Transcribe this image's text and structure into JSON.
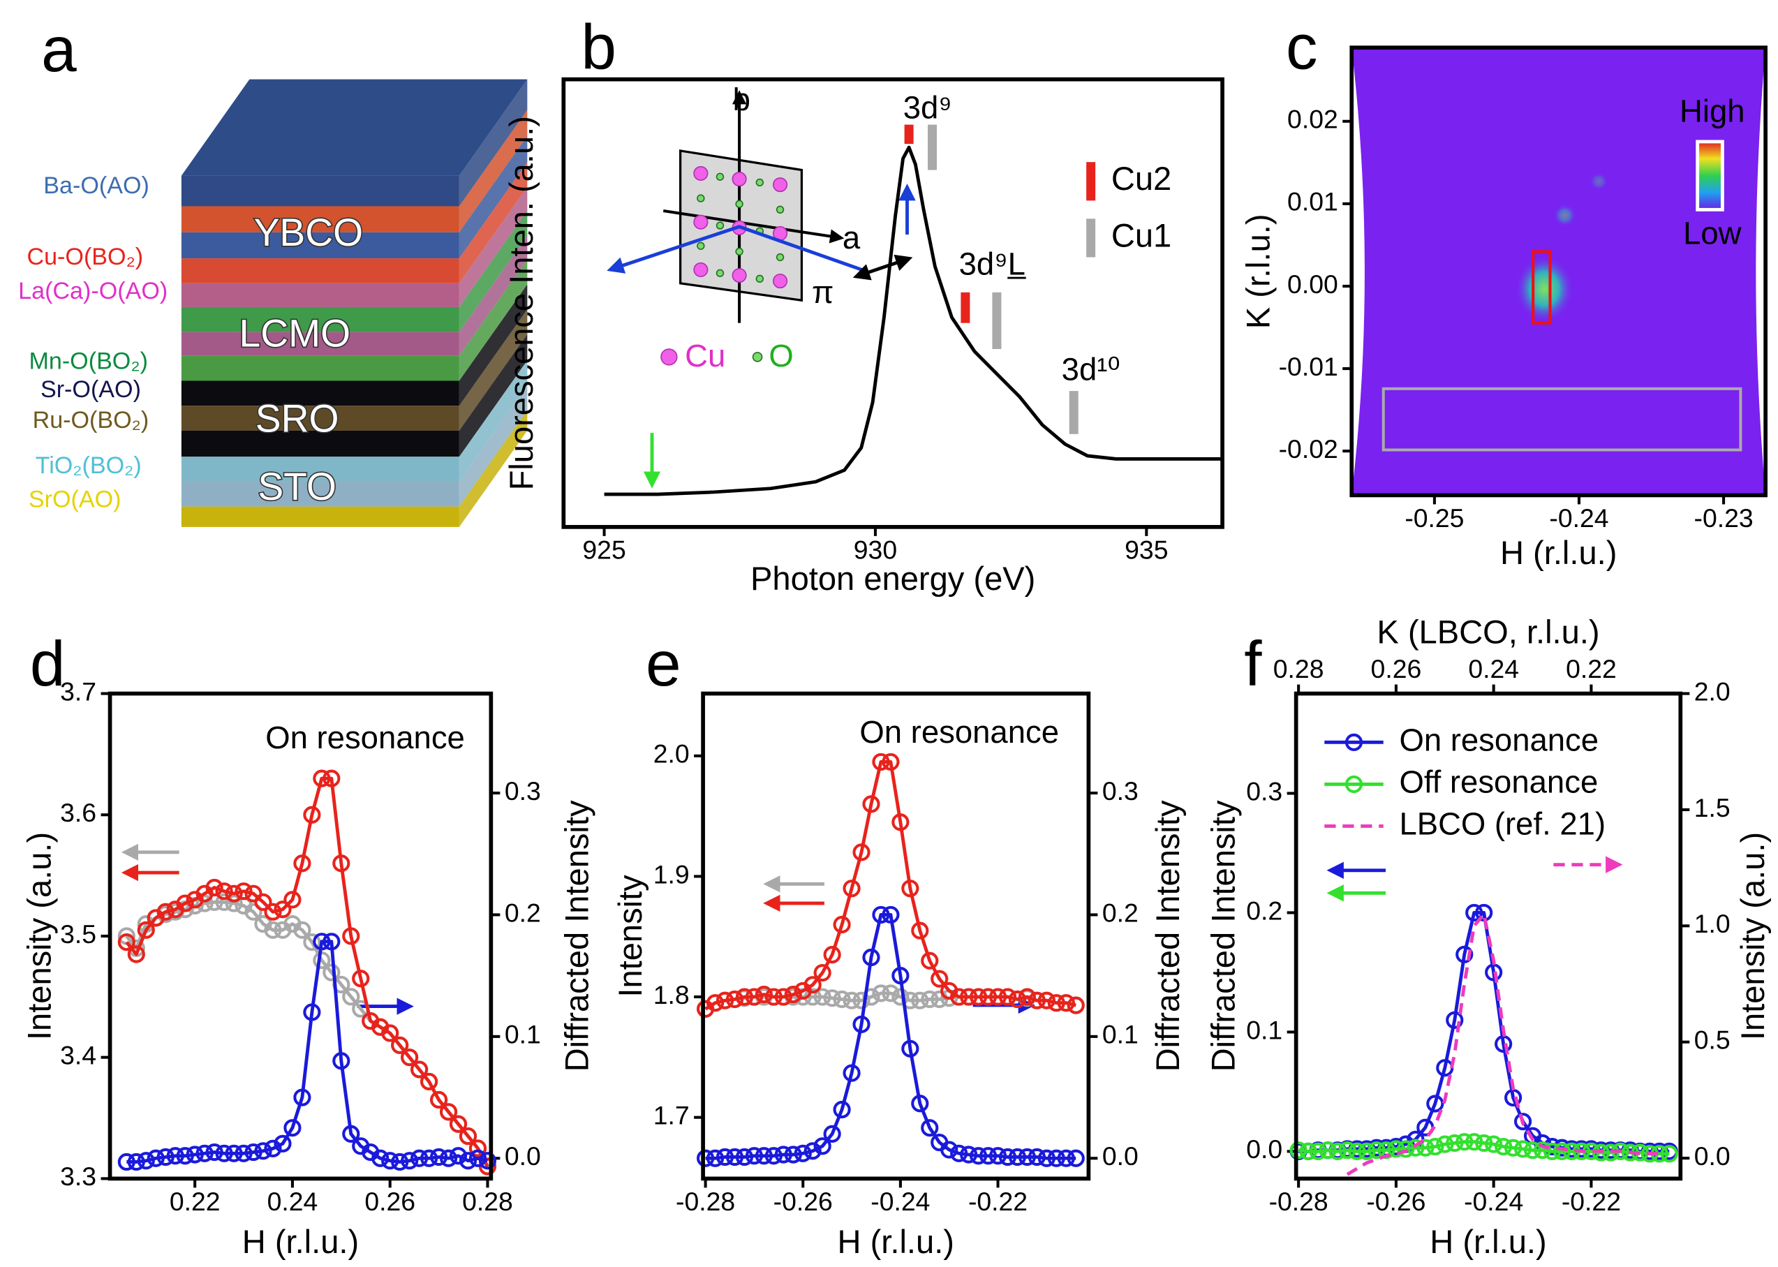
{
  "diagram": {
    "label": "a",
    "layer_labels": [
      {
        "text": "Ba-O(AO)",
        "color": "#3d6db0"
      },
      {
        "text": "Cu-O(BO₂)",
        "color": "#e8231c"
      },
      {
        "text": "La(Ca)-O(AO)",
        "color": "#e030c8"
      },
      {
        "text": "Mn-O(BO₂)",
        "color": "#0c8a40"
      },
      {
        "text": "Sr-O(AO)",
        "color": "#141450"
      },
      {
        "text": "Ru-O(BO₂)",
        "color": "#6e5a1e"
      },
      {
        "text": "TiO₂(BO₂)",
        "color": "#4ec0d4"
      },
      {
        "text": "SrO(AO)",
        "color": "#e6d200"
      }
    ],
    "blocks": [
      "YBCO",
      "LCMO",
      "SRO",
      "STO"
    ]
  },
  "chart_data": [
    {
      "label": "b",
      "type": "line",
      "xlabel": "Photon energy (eV)",
      "ylabel": "Fluorescence Inten. (a.u.)",
      "xlim": [
        924.25,
        936.4
      ],
      "ylim": [
        0,
        1
      ],
      "xticks": [
        925,
        930,
        935
      ],
      "x": [
        925,
        925.98,
        927.03,
        928.07,
        928.9,
        929.43,
        929.74,
        929.95,
        930.16,
        930.37,
        930.51,
        930.62,
        930.74,
        930.89,
        931.1,
        931.41,
        931.83,
        932.24,
        932.66,
        933.08,
        933.5,
        933.91,
        934.44,
        936.38
      ],
      "series": [
        {
          "color": "#000000",
          "values": [
            0.073,
            0.073,
            0.078,
            0.086,
            0.101,
            0.127,
            0.177,
            0.278,
            0.468,
            0.696,
            0.823,
            0.848,
            0.81,
            0.709,
            0.582,
            0.468,
            0.392,
            0.342,
            0.291,
            0.228,
            0.185,
            0.159,
            0.152,
            0.152
          ]
        }
      ],
      "markers": [
        {
          "name": "Cu2",
          "color": "#e8231c",
          "x": [
            930.62,
            931.66
          ]
        },
        {
          "name": "Cu1",
          "color": "#a9a9a9",
          "x": [
            931.05,
            932.24,
            933.66
          ]
        }
      ],
      "annotations": [
        "3d⁹",
        "3d⁹L̲",
        "3d¹⁰",
        "b",
        "a",
        "π",
        "Cu",
        "O"
      ]
    },
    {
      "label": "c",
      "type": "heatmap",
      "xlabel": "H (r.l.u.)",
      "ylabel": "K (r.l.u.)",
      "xlim": [
        -0.25573,
        -0.2271
      ],
      "ylim": [
        -0.02536,
        0.02894
      ],
      "xticks": [
        -0.25,
        -0.24,
        -0.23
      ],
      "yticks": [
        0.02,
        0.01,
        {
          "value": 0,
          "label": "0.00"
        },
        -0.01,
        -0.02
      ],
      "colorbar_labels": [
        "High",
        "Low"
      ]
    },
    {
      "label": "d",
      "type": "line",
      "xlabel": "H (r.l.u.)",
      "ylabel": "Intensity (a.u.)",
      "y2label": "Diffracted Intensity",
      "xlim": [
        0.2026,
        0.2807
      ],
      "ylim": [
        3.3,
        3.7
      ],
      "y2lim": [
        -0.0167,
        0.3817
      ],
      "xticks": [
        0.22,
        0.24,
        0.26,
        0.28
      ],
      "yticks": [
        3.3,
        3.4,
        3.5,
        3.6,
        3.7
      ],
      "y2ticks": [
        {
          "value": 0,
          "label": "0.0"
        },
        0.1,
        0.2,
        0.3
      ],
      "x": [
        0.206,
        0.208,
        0.21,
        0.212,
        0.214,
        0.216,
        0.218,
        0.22,
        0.222,
        0.224,
        0.226,
        0.228,
        0.23,
        0.232,
        0.234,
        0.236,
        0.238,
        0.24,
        0.242,
        0.244,
        0.246,
        0.248,
        0.25,
        0.252,
        0.254,
        0.256,
        0.258,
        0.26,
        0.262,
        0.264,
        0.266,
        0.268,
        0.27,
        0.272,
        0.274,
        0.276,
        0.278,
        0.28
      ],
      "series": [
        {
          "color": "#a9a9a9",
          "marker": "circle",
          "values": [
            3.5,
            3.49,
            3.51,
            3.515,
            3.518,
            3.52,
            3.522,
            3.525,
            3.527,
            3.528,
            3.528,
            3.527,
            3.525,
            3.52,
            3.51,
            3.505,
            3.505,
            3.51,
            3.505,
            3.495,
            3.48,
            3.47,
            3.46,
            3.45,
            3.44,
            3.43,
            3.425,
            3.42,
            3.41,
            3.4,
            3.39,
            3.38,
            3.365,
            3.355,
            3.345,
            3.335,
            3.325,
            3.31
          ]
        },
        {
          "color": "#e8231c",
          "marker": "circle",
          "values": [
            3.495,
            3.485,
            3.505,
            3.515,
            3.52,
            3.522,
            3.527,
            3.53,
            3.535,
            3.54,
            3.537,
            3.535,
            3.537,
            3.535,
            3.528,
            3.52,
            3.522,
            3.53,
            3.56,
            3.6,
            3.63,
            3.63,
            3.56,
            3.5,
            3.465,
            3.43,
            3.425,
            3.42,
            3.41,
            3.4,
            3.39,
            3.38,
            3.365,
            3.355,
            3.345,
            3.335,
            3.325,
            3.31
          ]
        },
        {
          "color": "#1a1adb",
          "marker": "circle",
          "axis": "y2",
          "values": [
            -0.003,
            -0.003,
            -0.002,
            0,
            0.001,
            0.002,
            0.002,
            0.003,
            0.004,
            0.005,
            0.004,
            0.004,
            0.004,
            0.005,
            0.006,
            0.008,
            0.012,
            0.025,
            0.05,
            0.12,
            0.178,
            0.178,
            0.08,
            0.02,
            0.01,
            0.005,
            0,
            -0.002,
            -0.003,
            -0.002,
            0,
            0,
            0.001,
            0,
            0.002,
            -0.002,
            0,
            -0.002
          ]
        }
      ],
      "annotations": [
        "On resonance"
      ]
    },
    {
      "label": "e",
      "type": "line",
      "xlabel": "H (r.l.u.)",
      "ylabel": "Intensity",
      "y2label": "Diffracted Intensity",
      "xlim": [
        -0.2805,
        -0.2014
      ],
      "ylim": [
        1.6492,
        2.0517
      ],
      "y2lim": [
        -0.0167,
        0.3817
      ],
      "xticks": [
        -0.28,
        -0.26,
        -0.24,
        -0.22
      ],
      "yticks": [
        1.7,
        1.8,
        1.9,
        {
          "value": 2,
          "label": "2.0"
        }
      ],
      "y2ticks": [
        {
          "value": 0,
          "label": "0.0"
        },
        0.1,
        0.2,
        0.3
      ],
      "x": [
        -0.28,
        -0.278,
        -0.276,
        -0.274,
        -0.272,
        -0.27,
        -0.268,
        -0.266,
        -0.264,
        -0.262,
        -0.26,
        -0.258,
        -0.256,
        -0.254,
        -0.252,
        -0.25,
        -0.248,
        -0.246,
        -0.244,
        -0.242,
        -0.24,
        -0.238,
        -0.236,
        -0.234,
        -0.232,
        -0.23,
        -0.228,
        -0.226,
        -0.224,
        -0.222,
        -0.22,
        -0.218,
        -0.216,
        -0.214,
        -0.212,
        -0.21,
        -0.208,
        -0.206,
        -0.204
      ],
      "series": [
        {
          "color": "#a9a9a9",
          "marker": "circle",
          "values": [
            1.79,
            1.795,
            1.797,
            1.798,
            1.799,
            1.8,
            1.8,
            1.8,
            1.8,
            1.8,
            1.8,
            1.8,
            1.8,
            1.799,
            1.798,
            1.797,
            1.797,
            1.8,
            1.803,
            1.803,
            1.8,
            1.797,
            1.797,
            1.798,
            1.798,
            1.799,
            1.8,
            1.8,
            1.8,
            1.8,
            1.8,
            1.8,
            1.798,
            1.799,
            1.797,
            1.797,
            1.795,
            1.795,
            1.793
          ]
        },
        {
          "color": "#e8231c",
          "marker": "circle",
          "values": [
            1.79,
            1.795,
            1.797,
            1.798,
            1.8,
            1.8,
            1.802,
            1.8,
            1.8,
            1.802,
            1.805,
            1.81,
            1.82,
            1.835,
            1.86,
            1.89,
            1.92,
            1.96,
            1.995,
            1.995,
            1.945,
            1.89,
            1.855,
            1.83,
            1.815,
            1.805,
            1.8,
            1.8,
            1.8,
            1.8,
            1.8,
            1.8,
            1.798,
            1.8,
            1.797,
            1.797,
            1.795,
            1.795,
            1.793
          ]
        },
        {
          "color": "#1a1adb",
          "marker": "circle",
          "axis": "y2",
          "values": [
            0,
            0,
            0.001,
            0.001,
            0.001,
            0.002,
            0.002,
            0.002,
            0.003,
            0.003,
            0.004,
            0.006,
            0.01,
            0.02,
            0.04,
            0.07,
            0.11,
            0.165,
            0.2,
            0.2,
            0.15,
            0.09,
            0.045,
            0.025,
            0.013,
            0.007,
            0.004,
            0.003,
            0.002,
            0.002,
            0.002,
            0.001,
            0.001,
            0.001,
            0.001,
            0,
            0,
            0,
            0
          ]
        }
      ],
      "annotations": [
        "On resonance"
      ]
    },
    {
      "label": "f",
      "type": "line",
      "xlabel": "H (r.l.u.)",
      "x2label": "K (LBCO, r.l.u.)",
      "ylabel": "Diffracted Intensity",
      "y2label": "Intensity (a.u.)",
      "xlim": [
        -0.2805,
        -0.2017
      ],
      "x2lim": [
        0.2805,
        0.2017
      ],
      "ylim": [
        -0.0228,
        0.3836
      ],
      "y2lim": [
        -0.088,
        2
      ],
      "xticks": [
        -0.28,
        -0.26,
        -0.24,
        -0.22
      ],
      "x2ticks": [
        0.28,
        0.26,
        0.24,
        0.22
      ],
      "yticks": [
        {
          "value": 0,
          "label": "0.0"
        },
        0.1,
        0.2,
        0.3
      ],
      "y2ticks": [
        {
          "value": 0,
          "label": "0.0"
        },
        0.5,
        {
          "value": 1,
          "label": "1.0"
        },
        1.5,
        {
          "value": 2,
          "label": "2.0"
        }
      ],
      "x": [
        -0.28,
        -0.278,
        -0.276,
        -0.274,
        -0.272,
        -0.27,
        -0.268,
        -0.266,
        -0.264,
        -0.262,
        -0.26,
        -0.258,
        -0.256,
        -0.254,
        -0.252,
        -0.25,
        -0.248,
        -0.246,
        -0.244,
        -0.242,
        -0.24,
        -0.238,
        -0.236,
        -0.234,
        -0.232,
        -0.23,
        -0.228,
        -0.226,
        -0.224,
        -0.222,
        -0.22,
        -0.218,
        -0.216,
        -0.214,
        -0.212,
        -0.21,
        -0.208,
        -0.206,
        -0.204
      ],
      "series": [
        {
          "name": "On resonance",
          "color": "#1a1adb",
          "marker": "circle",
          "values": [
            0,
            0,
            0.001,
            0.001,
            0.001,
            0.002,
            0.002,
            0.002,
            0.003,
            0.003,
            0.004,
            0.006,
            0.01,
            0.02,
            0.04,
            0.07,
            0.11,
            0.165,
            0.2,
            0.2,
            0.15,
            0.09,
            0.045,
            0.025,
            0.013,
            0.007,
            0.004,
            0.003,
            0.002,
            0.002,
            0.002,
            0.001,
            0.001,
            0.001,
            0.001,
            0,
            0,
            0,
            0
          ]
        },
        {
          "name": "Off resonance",
          "color": "#33e02e",
          "marker": "circle",
          "values": [
            0.001,
            0,
            0,
            0.001,
            0,
            0.001,
            0,
            0,
            0.001,
            0.001,
            0.002,
            0.002,
            0.003,
            0.003,
            0.004,
            0.006,
            0.007,
            0.008,
            0.008,
            0.007,
            0.006,
            0.004,
            0.003,
            0.002,
            0.001,
            0.001,
            0,
            0,
            0,
            0,
            0,
            -0.001,
            -0.001,
            0,
            -0.001,
            -0.001,
            -0.002,
            -0.002,
            -0.002
          ]
        },
        {
          "name": "LBCO (ref. 21)",
          "color": "#ee3bbd",
          "dashed": true,
          "axis": "y2",
          "x": [
            -0.27,
            -0.266,
            -0.262,
            -0.258,
            -0.254,
            -0.252,
            -0.25,
            -0.248,
            -0.246,
            -0.244,
            -0.242,
            -0.24,
            -0.238,
            -0.236,
            -0.234,
            -0.232,
            -0.23,
            -0.226,
            -0.222,
            -0.218,
            -0.214,
            -0.21,
            -0.206
          ],
          "values": [
            -0.07,
            -0.02,
            0.01,
            0.03,
            0.08,
            0.14,
            0.25,
            0.45,
            0.75,
            1.0,
            1.05,
            0.85,
            0.55,
            0.3,
            0.15,
            0.08,
            0.05,
            0.04,
            0.03,
            0.03,
            0.03,
            0.02,
            0.02
          ]
        }
      ]
    }
  ]
}
